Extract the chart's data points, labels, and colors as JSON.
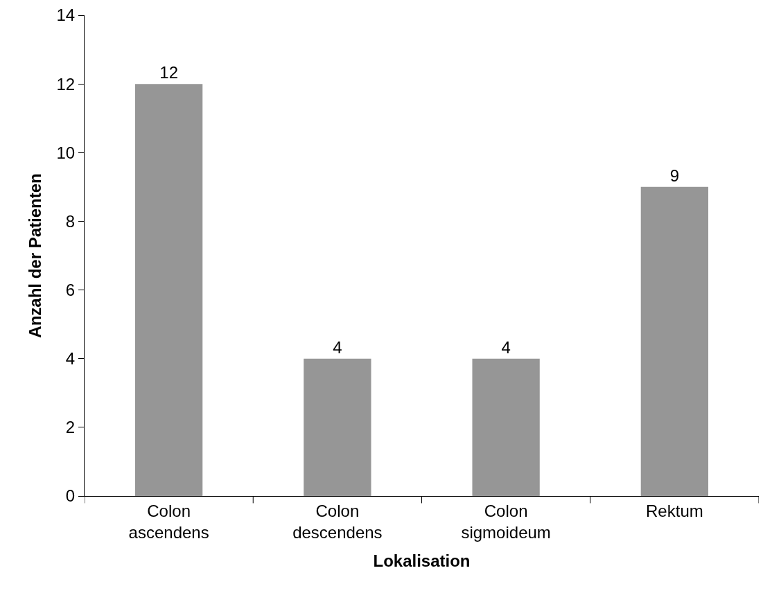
{
  "chart_data": {
    "type": "bar",
    "xlabel": "Lokalisation",
    "ylabel": "Anzahl der Patienten",
    "categories": [
      "Colon ascendens",
      "Colon descendens",
      "Colon sigmoideum",
      "Rektum"
    ],
    "values": [
      12,
      4,
      4,
      9
    ],
    "color": "#969696",
    "ylim": [
      0,
      14
    ],
    "yticks": [
      0,
      2,
      4,
      6,
      8,
      10,
      12,
      14
    ],
    "data_labels": true
  }
}
